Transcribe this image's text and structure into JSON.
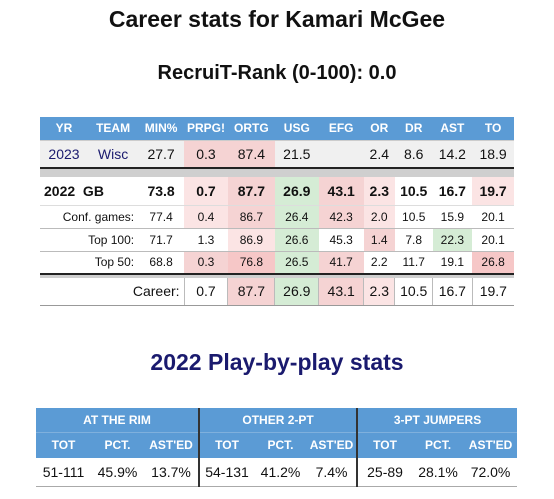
{
  "title": "Career stats for Kamari McGee",
  "subtitle": "RecruiT-Rank (0-100): 0.0",
  "career_table": {
    "headers": [
      "YR",
      "TEAM",
      "MIN%",
      "PRPG!",
      "ORTG",
      "USG",
      "EFG",
      "OR",
      "DR",
      "AST",
      "TO"
    ],
    "row_2023": {
      "yr": "2023",
      "team": "Wisc",
      "min": "27.7",
      "prpg": "0.3",
      "ortg": "87.4",
      "usg": "21.5",
      "efg": "",
      "or": "2.4",
      "dr": "8.6",
      "ast": "14.2",
      "to": "18.9"
    },
    "row_2022": {
      "label": "2022  GB",
      "min": "73.8",
      "prpg": "0.7",
      "ortg": "87.7",
      "usg": "26.9",
      "efg": "43.1",
      "or": "2.3",
      "dr": "10.5",
      "ast": "16.7",
      "to": "19.7"
    },
    "splits": [
      {
        "label": "Conf. games:",
        "min": "77.4",
        "prpg": "0.4",
        "ortg": "86.7",
        "usg": "26.4",
        "efg": "42.3",
        "or": "2.0",
        "dr": "10.5",
        "ast": "15.9",
        "to": "20.1"
      },
      {
        "label": "Top 100:",
        "min": "71.7",
        "prpg": "1.3",
        "ortg": "86.9",
        "usg": "26.6",
        "efg": "45.3",
        "or": "1.4",
        "dr": "7.8",
        "ast": "22.3",
        "to": "20.1"
      },
      {
        "label": "Top 50:",
        "min": "68.8",
        "prpg": "0.3",
        "ortg": "76.8",
        "usg": "26.5",
        "efg": "41.7",
        "or": "2.2",
        "dr": "11.7",
        "ast": "19.1",
        "to": "26.8"
      }
    ],
    "career": {
      "label": "Career:",
      "prpg": "0.7",
      "ortg": "87.7",
      "usg": "26.9",
      "efg": "43.1",
      "or": "2.3",
      "dr": "10.5",
      "ast": "16.7",
      "to": "19.7"
    }
  },
  "pbp_title": "2022 Play-by-play stats",
  "pbp_table": {
    "groups": [
      "AT THE RIM",
      "OTHER 2-PT",
      "3-PT JUMPERS"
    ],
    "subheaders": [
      "TOT",
      "PCT.",
      "AST'ED",
      "TOT",
      "PCT.",
      "AST'ED",
      "TOT",
      "PCT.",
      "AST'ED"
    ],
    "values": [
      "51-111",
      "45.9%",
      "13.7%",
      "54-131",
      "41.2%",
      "7.4%",
      "25-89",
      "28.1%",
      "72.0%"
    ]
  },
  "colors": {
    "header_blue": "#5b9bd5",
    "title_navy": "#1a1a6e",
    "pink": "#f5d3d3",
    "green": "#d5ecd5"
  }
}
